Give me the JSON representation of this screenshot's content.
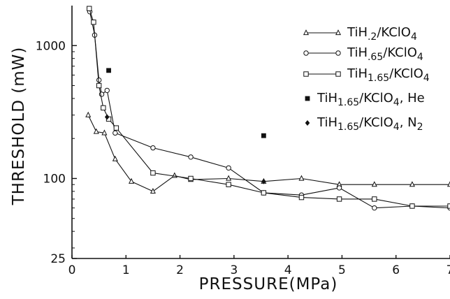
{
  "chart_data": {
    "type": "line",
    "xlabel": "PRESSURE(MPa)",
    "ylabel": "THRESHOLD (mW)",
    "x_scale": "linear",
    "y_scale": "log",
    "xlim": [
      0,
      7
    ],
    "ylim": [
      25,
      2000
    ],
    "x_ticks": [
      "0",
      "1",
      "2",
      "3",
      "4",
      "5",
      "6",
      "7"
    ],
    "y_ticks": [
      "25",
      "100",
      "1000"
    ],
    "grid": false,
    "legend_position": "top-right",
    "series": [
      {
        "name": "TiH.2/KClO4",
        "name_main": "TiH",
        "name_sub": ".2",
        "name_suffix": "/KClO",
        "name_sub2": "4",
        "name_tail": "",
        "marker": "triangle-open",
        "line": true,
        "x": [
          0.3,
          0.45,
          0.6,
          0.8,
          1.1,
          1.5,
          1.9,
          2.2,
          2.9,
          3.55,
          4.25,
          4.95,
          5.6,
          6.3,
          7.0
        ],
        "y": [
          300,
          225,
          220,
          140,
          95,
          80,
          105,
          98,
          100,
          95,
          100,
          90,
          90,
          90,
          90
        ]
      },
      {
        "name": "TiH.65/KClO4",
        "name_main": "TiH",
        "name_sub": ".65",
        "name_suffix": "/KClO",
        "name_sub2": "4",
        "name_tail": "",
        "marker": "circle-open",
        "line": true,
        "x": [
          0.33,
          0.42,
          0.5,
          0.55,
          0.65,
          0.8,
          1.5,
          2.2,
          2.9,
          3.55,
          4.25,
          4.95,
          5.6,
          6.3,
          7.0
        ],
        "y": [
          1800,
          1200,
          550,
          430,
          460,
          220,
          170,
          145,
          120,
          78,
          75,
          85,
          60,
          62,
          60
        ]
      },
      {
        "name": "TiH1.65/KClO4",
        "name_main": "TiH",
        "name_sub": "1.65",
        "name_suffix": "/KClO",
        "name_sub2": "4",
        "name_tail": "",
        "marker": "square-open",
        "line": true,
        "x": [
          0.32,
          0.4,
          0.5,
          0.58,
          0.68,
          0.82,
          1.5,
          2.2,
          2.9,
          3.55,
          4.25,
          4.95,
          5.6,
          6.3,
          7.0
        ],
        "y": [
          1900,
          1500,
          500,
          340,
          280,
          240,
          110,
          100,
          90,
          78,
          72,
          70,
          70,
          62,
          62
        ]
      },
      {
        "name": "TiH1.65/KClO4, He",
        "name_main": "TiH",
        "name_sub": "1.65",
        "name_suffix": "/KClO",
        "name_sub2": "4",
        "name_tail": ", He",
        "marker": "square-filled",
        "line": false,
        "x": [
          0.68,
          3.55
        ],
        "y": [
          650,
          210
        ]
      },
      {
        "name": "TiH1.65/KClO4, N2",
        "name_main": "TiH",
        "name_sub": "1.65",
        "name_suffix": "/KClO",
        "name_sub2": "4",
        "name_tail": ", N",
        "name_tail_sub": "2",
        "marker": "diamond-filled",
        "line": false,
        "x": [
          0.65,
          3.55
        ],
        "y": [
          290,
          95
        ]
      }
    ]
  }
}
